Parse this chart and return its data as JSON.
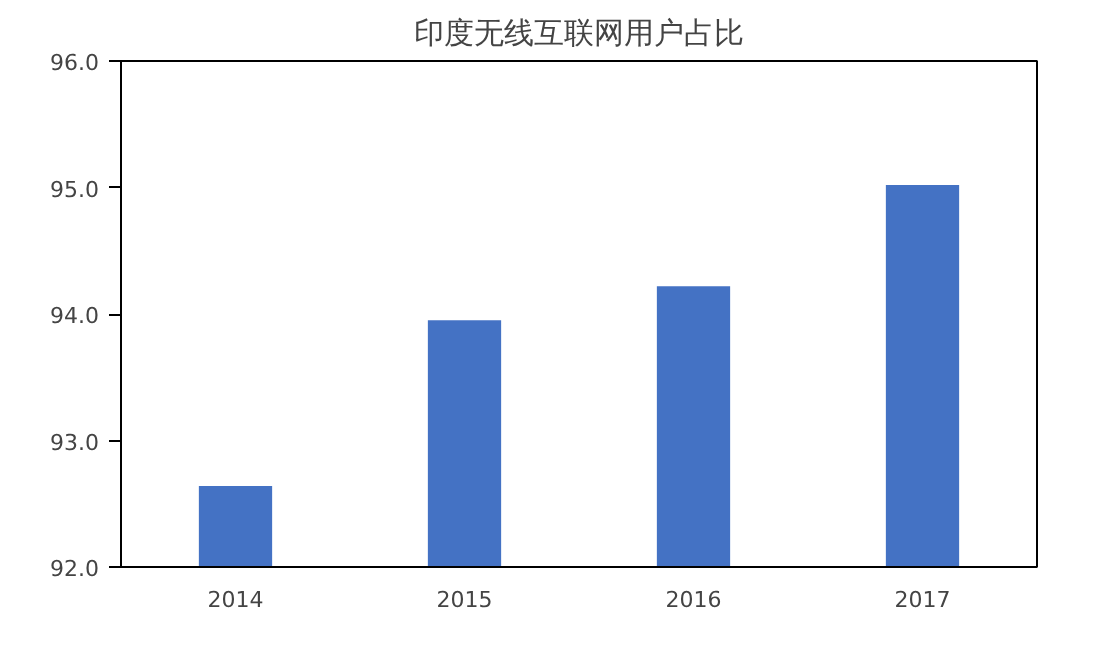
{
  "chart_data": {
    "type": "bar",
    "title": "印度无线互联网用户占比",
    "categories": [
      "2014",
      "2015",
      "2016",
      "2017"
    ],
    "values": [
      92.64,
      93.95,
      94.22,
      95.02
    ],
    "color": "#4472c4",
    "ylim": [
      92,
      96
    ],
    "yticks": [
      {
        "value": 92,
        "label": "92.0"
      },
      {
        "value": 93,
        "label": "93.0"
      },
      {
        "value": 94,
        "label": "94.0"
      },
      {
        "value": 95,
        "label": "95.0"
      },
      {
        "value": 96,
        "label": "96.0"
      }
    ],
    "grid": false
  }
}
